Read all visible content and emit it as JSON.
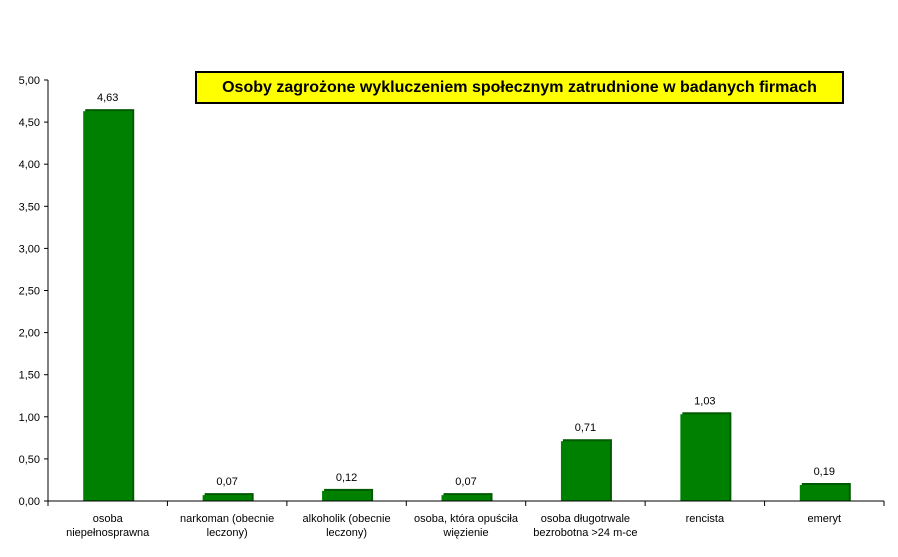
{
  "chart_data": {
    "type": "bar",
    "title": "Osoby zagrożone wykluczeniem społecznym zatrudnione w badanych firmach",
    "categories": [
      [
        "osoba",
        "niepełnosprawna"
      ],
      [
        "narkoman (obecnie",
        "leczony)"
      ],
      [
        "alkoholik (obecnie",
        "leczony)"
      ],
      [
        "osoba, która opuściła",
        "więzienie"
      ],
      [
        "osoba długotrwale",
        "bezrobotna >24 m-ce"
      ],
      [
        "rencista"
      ],
      [
        "emeryt"
      ]
    ],
    "values": [
      4.63,
      0.07,
      0.12,
      0.07,
      0.71,
      1.03,
      0.19
    ],
    "value_labels": [
      "4,63",
      "0,07",
      "0,12",
      "0,07",
      "0,71",
      "1,03",
      "0,19"
    ],
    "yticks": [
      "0,00",
      "0,50",
      "1,00",
      "1,50",
      "2,00",
      "2,50",
      "3,00",
      "3,50",
      "4,00",
      "4,50",
      "5,00"
    ],
    "ylim": [
      0,
      5
    ],
    "grid": false,
    "legend": "none",
    "bar_color": "#008000",
    "title_bg": "#ffff00"
  }
}
